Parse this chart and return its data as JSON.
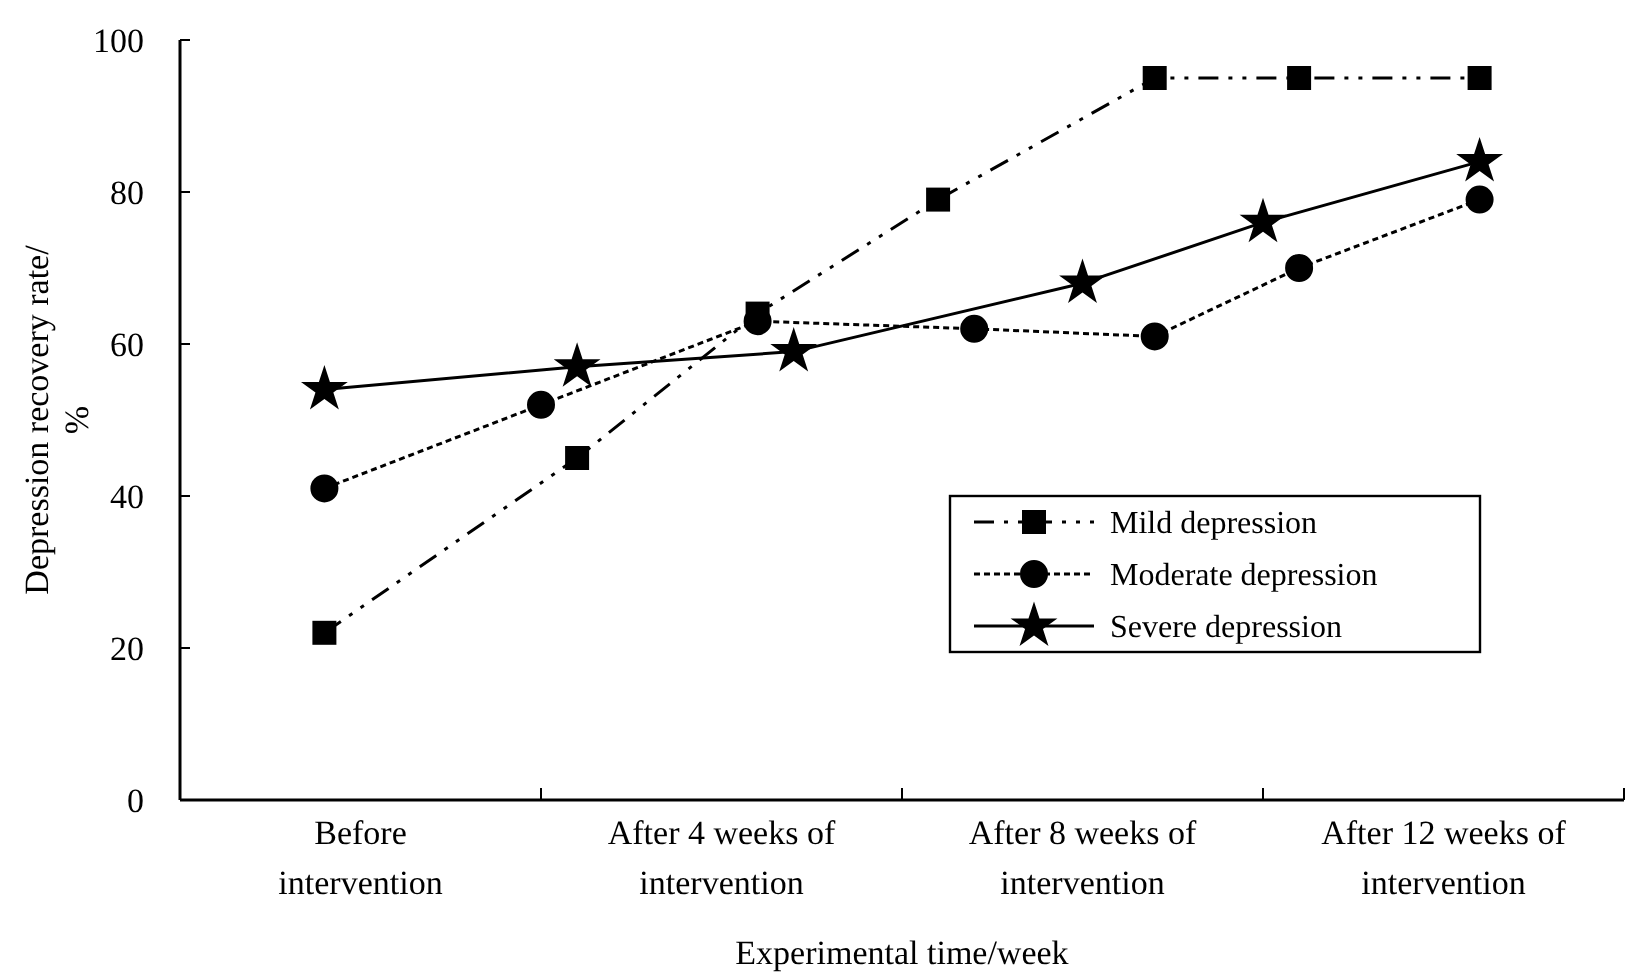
{
  "chart_data": {
    "type": "line",
    "xlabel": "Experimental time/week",
    "ylabel": "Depression recovery rate/ %",
    "ylim": [
      0,
      100
    ],
    "yticks": [
      0,
      20,
      40,
      60,
      80,
      100
    ],
    "categories": [
      null,
      null,
      null,
      null,
      null,
      "Before intervention",
      null,
      null,
      null,
      null,
      null,
      null,
      null,
      null,
      null,
      "After 4 weeks of intervention",
      null,
      null,
      null,
      null,
      null,
      null,
      null,
      null,
      null,
      "After 8 weeks of intervention",
      null,
      null,
      null,
      null,
      null,
      null,
      null,
      null,
      null,
      "After 12 weeks of intervention",
      null,
      null,
      null,
      null,
      null
    ],
    "grid": false,
    "legend": "bottom right",
    "series": [
      {
        "name": "Mild depression",
        "color": "#000000",
        "marker": "square",
        "line_style": "dashed",
        "values": [
          null,
          null,
          null,
          null,
          22,
          null,
          null,
          null,
          null,
          null,
          null,
          45,
          null,
          null,
          null,
          null,
          64,
          null,
          null,
          null,
          null,
          79,
          null,
          null,
          null,
          null,
          null,
          95,
          null,
          null,
          null,
          95,
          null,
          null,
          null,
          null,
          95,
          null,
          null,
          null,
          null
        ]
      },
      {
        "name": "Moderate depression",
        "color": "#000000",
        "marker": "circle",
        "line_style": "dotted",
        "values": [
          null,
          null,
          null,
          null,
          41,
          null,
          null,
          null,
          null,
          null,
          52,
          null,
          null,
          null,
          null,
          null,
          63,
          null,
          null,
          null,
          null,
          null,
          62,
          null,
          null,
          null,
          null,
          61,
          null,
          null,
          null,
          70,
          null,
          null,
          null,
          null,
          79,
          null,
          null,
          null,
          null
        ]
      },
      {
        "name": "Severe depression",
        "color": "#000000",
        "marker": "star",
        "line_style": "solid",
        "values": [
          null,
          null,
          null,
          null,
          54,
          null,
          null,
          null,
          null,
          null,
          null,
          57,
          null,
          null,
          null,
          null,
          null,
          59,
          null,
          null,
          null,
          null,
          null,
          null,
          null,
          68,
          null,
          null,
          null,
          null,
          76,
          null,
          null,
          null,
          null,
          null,
          84,
          null,
          null,
          null,
          null
        ]
      }
    ]
  }
}
